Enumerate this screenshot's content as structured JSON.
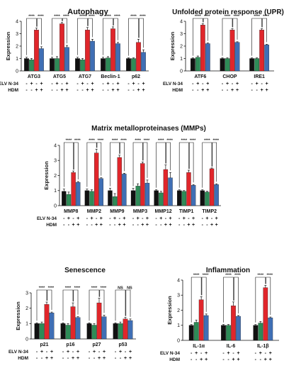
{
  "colors": {
    "control": "#111111",
    "elv": "#2e8b57",
    "hdm": "#e0262b",
    "elv_hdm": "#3f6fb5"
  },
  "row_labels": {
    "elv": "ELV N-34",
    "hdm": "HDM",
    "elv_alt": "ELV N-34 -"
  },
  "treatment_symbols": {
    "elv": [
      "-",
      "+",
      "-",
      "+"
    ],
    "hdm": [
      "-",
      "-",
      "+",
      "+"
    ]
  },
  "chart_data": [
    {
      "id": "autophagy",
      "type": "bar",
      "title": "Autophagy",
      "ylabel": "Expression",
      "ylim": [
        0,
        4
      ],
      "yticks": [
        "0",
        "1",
        "2",
        "3",
        "4"
      ],
      "categories": [
        "ATG3",
        "ATG5",
        "ATG7",
        "Beclin-1",
        "p62"
      ],
      "series": [
        {
          "values": [
            1.0,
            1.0,
            1.0,
            1.0,
            1.0
          ],
          "errors": [
            0.1,
            0.1,
            0.1,
            0.1,
            0.05
          ]
        },
        {
          "values": [
            0.9,
            1.0,
            0.9,
            1.05,
            1.0
          ],
          "errors": [
            0.1,
            0.15,
            0.1,
            0.1,
            0.05
          ]
        },
        {
          "values": [
            3.3,
            3.8,
            3.3,
            3.4,
            2.3
          ],
          "errors": [
            0.15,
            0.1,
            0.2,
            0.15,
            0.25
          ]
        },
        {
          "values": [
            1.8,
            1.9,
            2.4,
            2.2,
            1.5
          ],
          "errors": [
            0.15,
            0.15,
            0.15,
            0.1,
            0.2
          ]
        }
      ],
      "significance": [
        [
          "****",
          "****"
        ],
        [
          "****",
          "****"
        ],
        [
          "****",
          "****"
        ],
        [
          "****",
          "****"
        ],
        [
          "****",
          "****"
        ]
      ]
    },
    {
      "id": "upr",
      "type": "bar",
      "title": "Unfolded protein response (UPR)",
      "ylabel": "Expression",
      "ylim": [
        0,
        4
      ],
      "yticks": [
        "0",
        "1",
        "2",
        "3",
        "4"
      ],
      "categories": [
        "ATF6",
        "CHOP",
        "IRE1"
      ],
      "series": [
        {
          "values": [
            1.0,
            1.0,
            1.0
          ],
          "errors": [
            0.05,
            0.05,
            0.05
          ]
        },
        {
          "values": [
            1.1,
            1.0,
            1.0
          ],
          "errors": [
            0.1,
            0.05,
            0.05
          ]
        },
        {
          "values": [
            3.7,
            3.3,
            3.3
          ],
          "errors": [
            0.1,
            0.1,
            0.1
          ]
        },
        {
          "values": [
            2.2,
            2.3,
            2.1
          ],
          "errors": [
            0.05,
            0.05,
            0.05
          ]
        }
      ],
      "significance": [
        [
          "****",
          "****"
        ],
        [
          "****",
          "****"
        ],
        [
          "****",
          "****"
        ]
      ]
    },
    {
      "id": "mmps",
      "type": "bar",
      "title": "Matrix metalloproteinases (MMPs)",
      "ylabel": "Expression",
      "ylim": [
        0,
        4
      ],
      "yticks": [
        "0",
        "1",
        "2",
        "3",
        "4"
      ],
      "categories": [
        "MMP8",
        "MMP2",
        "MMP9",
        "MMP3",
        "MMP12",
        "TIMP1",
        "TIMP2"
      ],
      "series": [
        {
          "values": [
            0.95,
            1.0,
            1.0,
            1.0,
            1.0,
            1.0,
            1.0
          ],
          "errors": [
            0.15,
            0.1,
            0.15,
            0.15,
            0.05,
            0.05,
            0.05
          ]
        },
        {
          "values": [
            0.75,
            0.95,
            0.6,
            1.3,
            0.85,
            0.95,
            0.9
          ],
          "errors": [
            0.15,
            0.1,
            0.2,
            0.15,
            0.1,
            0.05,
            0.05
          ]
        },
        {
          "values": [
            2.2,
            3.5,
            3.2,
            2.8,
            2.4,
            2.2,
            2.45
          ],
          "errors": [
            0.1,
            0.25,
            0.15,
            0.1,
            0.3,
            0.15,
            0.05
          ]
        },
        {
          "values": [
            1.55,
            1.8,
            2.1,
            1.5,
            1.85,
            1.35,
            1.4
          ],
          "errors": [
            0.05,
            0.05,
            0.05,
            0.2,
            0.35,
            0.05,
            0.05
          ]
        }
      ],
      "significance": [
        [
          "****",
          "****"
        ],
        [
          "****",
          "****"
        ],
        [
          "****",
          "****"
        ],
        [
          "****",
          "****"
        ],
        [
          "****",
          "****"
        ],
        [
          "****",
          "****"
        ],
        [
          "****",
          "****"
        ]
      ]
    },
    {
      "id": "senescence",
      "type": "bar",
      "title": "Senescence",
      "ylabel": "Expression",
      "ylim": [
        0,
        3
      ],
      "yticks": [
        "0",
        "1",
        "2",
        "3"
      ],
      "categories": [
        "p21",
        "p16",
        "p27",
        "p53"
      ],
      "series": [
        {
          "values": [
            1.0,
            1.0,
            1.0,
            1.0
          ],
          "errors": [
            0.05,
            0.05,
            0.05,
            0.05
          ]
        },
        {
          "values": [
            1.0,
            0.9,
            0.9,
            1.0
          ],
          "errors": [
            0.1,
            0.1,
            0.1,
            0.1
          ]
        },
        {
          "values": [
            2.25,
            2.1,
            2.35,
            1.3
          ],
          "errors": [
            0.15,
            0.25,
            0.3,
            0.1
          ]
        },
        {
          "values": [
            1.7,
            1.4,
            1.45,
            1.2
          ],
          "errors": [
            0.05,
            0.05,
            0.1,
            0.1
          ]
        }
      ],
      "significance": [
        [
          "****",
          "****"
        ],
        [
          "****",
          "****"
        ],
        [
          "****",
          "****"
        ],
        [
          "NS",
          "NS"
        ]
      ]
    },
    {
      "id": "inflammation",
      "type": "bar",
      "title": "Inflammation",
      "ylabel": "Expression",
      "ylim": [
        0,
        4
      ],
      "yticks": [
        "0",
        "1",
        "2",
        "3",
        "4"
      ],
      "categories": [
        "IL-1α",
        "IL-6",
        "IL-1β"
      ],
      "series": [
        {
          "values": [
            1.0,
            1.0,
            1.0
          ],
          "errors": [
            0.05,
            0.05,
            0.05
          ]
        },
        {
          "values": [
            1.2,
            1.0,
            1.15
          ],
          "errors": [
            0.15,
            0.05,
            0.1
          ]
        },
        {
          "values": [
            2.7,
            2.3,
            3.5
          ],
          "errors": [
            0.2,
            0.25,
            0.15
          ]
        },
        {
          "values": [
            1.65,
            1.6,
            1.5
          ],
          "errors": [
            0.1,
            0.05,
            0.05
          ]
        }
      ],
      "significance": [
        [
          "****",
          "****"
        ],
        [
          "****",
          "****"
        ],
        [
          "****",
          "****"
        ]
      ]
    }
  ]
}
